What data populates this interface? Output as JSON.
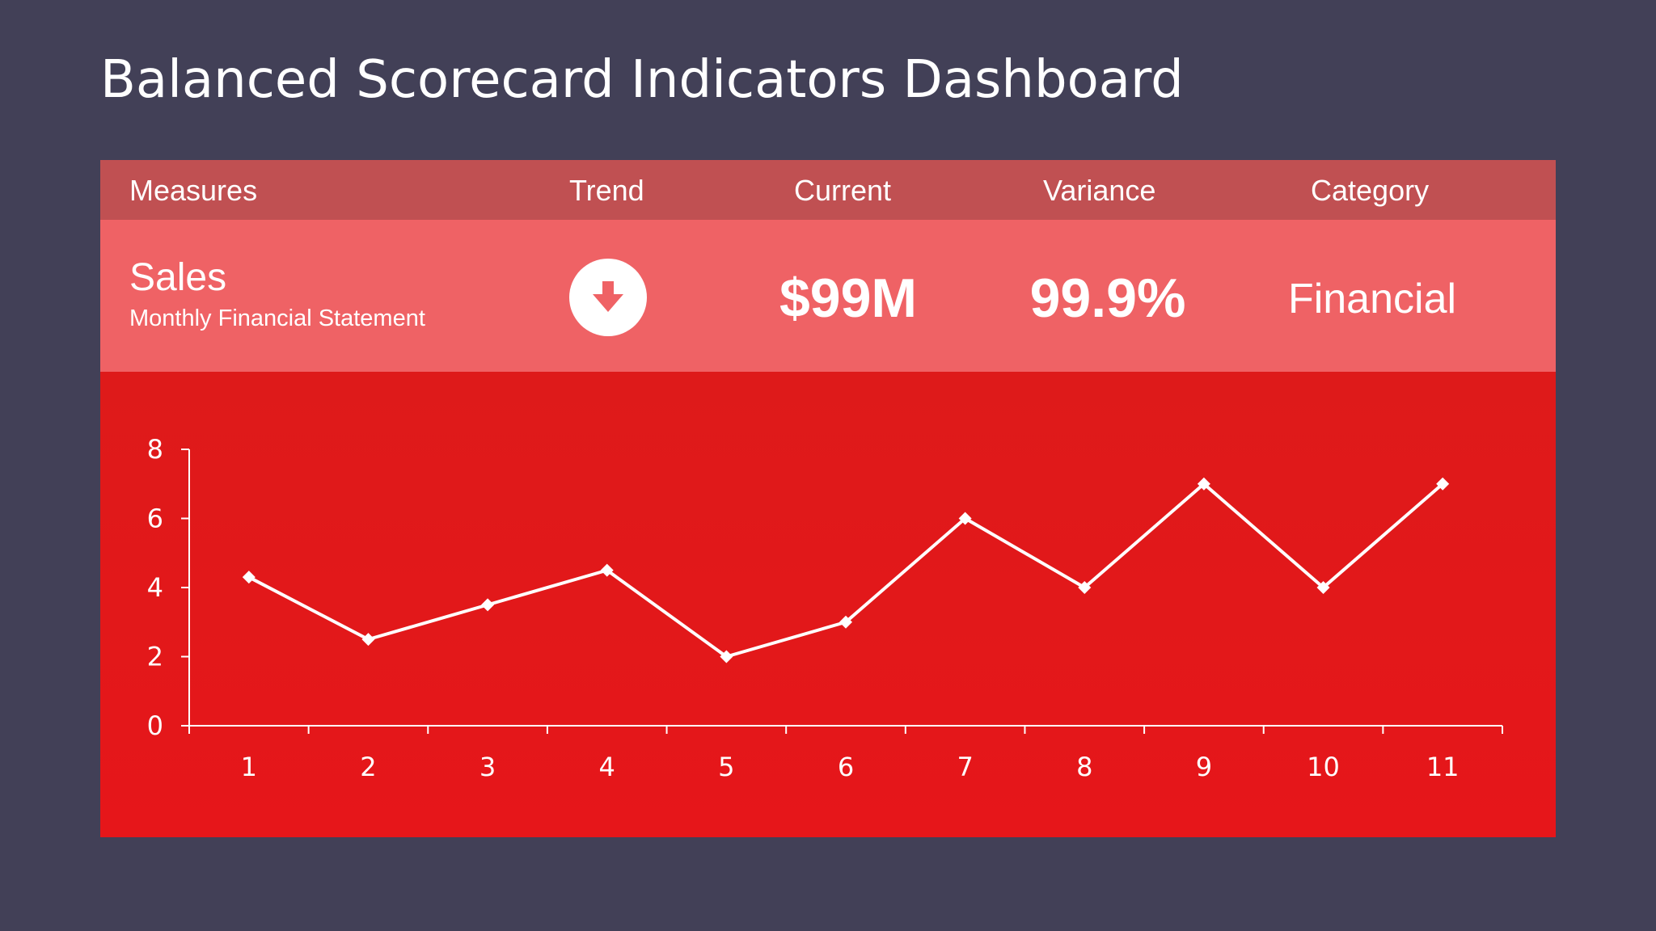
{
  "title": "Balanced Scorecard Indicators Dashboard",
  "header": {
    "measures": "Measures",
    "trend": "Trend",
    "current": "Current",
    "variance": "Variance",
    "category": "Category"
  },
  "row": {
    "measure_name": "Sales",
    "measure_sub": "Monthly Financial Statement",
    "trend_icon": "arrow-down-circle-icon",
    "current": "$99M",
    "variance": "99.9%",
    "category": "Financial"
  },
  "colors": {
    "background": "#424057",
    "header_row": "#c05052",
    "value_row": "#ef6265",
    "chart_bg": "#e01a1a",
    "line": "#ffffff"
  },
  "chart_data": {
    "type": "line",
    "x": [
      1,
      2,
      3,
      4,
      5,
      6,
      7,
      8,
      9,
      10,
      11
    ],
    "series": [
      {
        "values": [
          4.3,
          2.5,
          3.5,
          4.5,
          2,
          3,
          6,
          4,
          7,
          4,
          7
        ]
      }
    ],
    "xticks": [
      "1",
      "2",
      "3",
      "4",
      "5",
      "6",
      "7",
      "8",
      "9",
      "10",
      "11"
    ],
    "yticks": [
      "0",
      "2",
      "4",
      "6",
      "8"
    ],
    "ylim": [
      0,
      8
    ],
    "xlabel": "",
    "ylabel": "",
    "marker": "diamond",
    "grid": false,
    "legend": "none"
  }
}
